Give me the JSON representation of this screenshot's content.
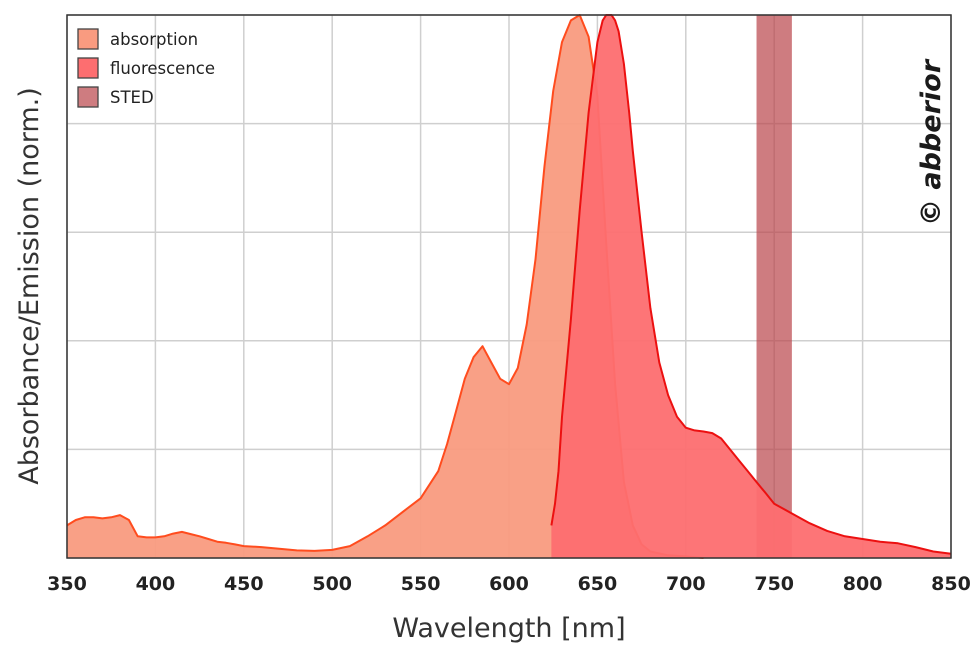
{
  "chart_data": {
    "type": "area",
    "xlabel": "Wavelength [nm]",
    "ylabel": "Absorbance/Emission (norm.)",
    "xlim": [
      350,
      850
    ],
    "ylim": [
      0,
      1
    ],
    "x_ticks": [
      350,
      400,
      450,
      500,
      550,
      600,
      650,
      700,
      750,
      800,
      850
    ],
    "y_ticks": [
      0,
      0.2,
      0.4,
      0.6,
      0.8,
      1.0
    ],
    "grid": true,
    "legend_position": "top-left",
    "series": [
      {
        "name": "absorption",
        "fill": "#f99b80",
        "line": "#ff4c1e",
        "x": [
          350,
          355,
          360,
          365,
          370,
          375,
          380,
          385,
          390,
          395,
          400,
          405,
          410,
          415,
          420,
          425,
          430,
          435,
          440,
          445,
          450,
          460,
          470,
          480,
          490,
          500,
          510,
          520,
          530,
          540,
          550,
          560,
          565,
          570,
          575,
          580,
          585,
          590,
          595,
          600,
          605,
          610,
          615,
          620,
          625,
          630,
          635,
          640,
          645,
          650,
          655,
          660,
          665,
          670,
          675,
          680,
          690,
          700,
          710
        ],
        "y": [
          0.06,
          0.07,
          0.075,
          0.075,
          0.073,
          0.075,
          0.079,
          0.07,
          0.04,
          0.038,
          0.038,
          0.04,
          0.045,
          0.048,
          0.044,
          0.04,
          0.035,
          0.03,
          0.028,
          0.025,
          0.022,
          0.02,
          0.017,
          0.014,
          0.013,
          0.015,
          0.022,
          0.04,
          0.06,
          0.085,
          0.11,
          0.16,
          0.21,
          0.27,
          0.33,
          0.37,
          0.39,
          0.36,
          0.33,
          0.32,
          0.35,
          0.43,
          0.55,
          0.72,
          0.86,
          0.95,
          0.99,
          1.0,
          0.96,
          0.85,
          0.58,
          0.32,
          0.14,
          0.06,
          0.025,
          0.012,
          0.005,
          0.003,
          0.0
        ]
      },
      {
        "name": "fluorescence",
        "fill": "#fd6e70",
        "line": "#ec1010",
        "x": [
          624,
          626,
          628,
          630,
          635,
          640,
          645,
          650,
          653,
          655,
          658,
          660,
          662,
          665,
          668,
          670,
          675,
          680,
          685,
          690,
          695,
          700,
          705,
          710,
          715,
          720,
          725,
          730,
          735,
          740,
          745,
          750,
          760,
          770,
          780,
          790,
          800,
          810,
          820,
          830,
          840,
          850
        ],
        "y": [
          0.06,
          0.1,
          0.16,
          0.26,
          0.44,
          0.64,
          0.82,
          0.95,
          0.99,
          1.0,
          1.0,
          0.99,
          0.97,
          0.91,
          0.82,
          0.75,
          0.6,
          0.46,
          0.36,
          0.3,
          0.26,
          0.24,
          0.235,
          0.233,
          0.23,
          0.22,
          0.2,
          0.18,
          0.16,
          0.14,
          0.12,
          0.1,
          0.082,
          0.064,
          0.05,
          0.04,
          0.035,
          0.03,
          0.027,
          0.02,
          0.012,
          0.008
        ]
      },
      {
        "name": "STED",
        "type": "band",
        "fill": "#b9454a",
        "opacity": 0.7,
        "x_range": [
          740,
          760
        ]
      }
    ]
  },
  "watermark": "© abberior"
}
